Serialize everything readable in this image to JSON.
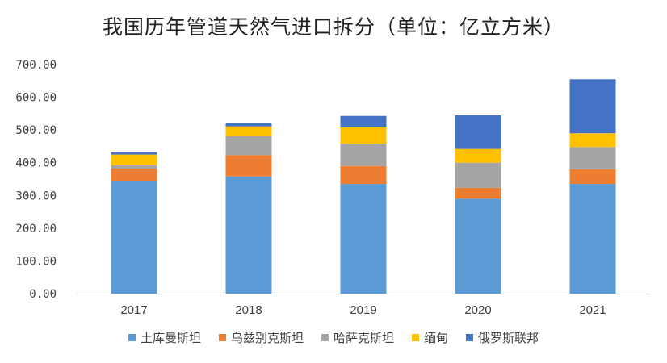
{
  "chart_data": {
    "type": "bar",
    "stacked": true,
    "title": "我国历年管道天然气进口拆分（单位：亿立方米）",
    "categories": [
      "2017",
      "2018",
      "2019",
      "2020",
      "2021"
    ],
    "ylim": [
      0,
      700
    ],
    "yticks": [
      "0.00",
      "100.00",
      "200.00",
      "300.00",
      "400.00",
      "500.00",
      "600.00",
      "700.00"
    ],
    "grid": false,
    "legend_position": "bottom",
    "series": [
      {
        "name": "土库曼斯坦",
        "color": "#5B9BD5",
        "values": [
          345,
          358,
          335,
          290,
          335
        ]
      },
      {
        "name": "乌兹别克斯坦",
        "color": "#ED7D31",
        "values": [
          37,
          65,
          55,
          33,
          45
        ]
      },
      {
        "name": "哈萨克斯坦",
        "color": "#A5A5A5",
        "values": [
          10,
          58,
          68,
          77,
          68
        ]
      },
      {
        "name": "缅甸",
        "color": "#FFC000",
        "values": [
          33,
          30,
          50,
          42,
          42
        ]
      },
      {
        "name": "俄罗斯联邦",
        "color": "#4472C4",
        "values": [
          7,
          9,
          35,
          103,
          165
        ]
      }
    ]
  }
}
